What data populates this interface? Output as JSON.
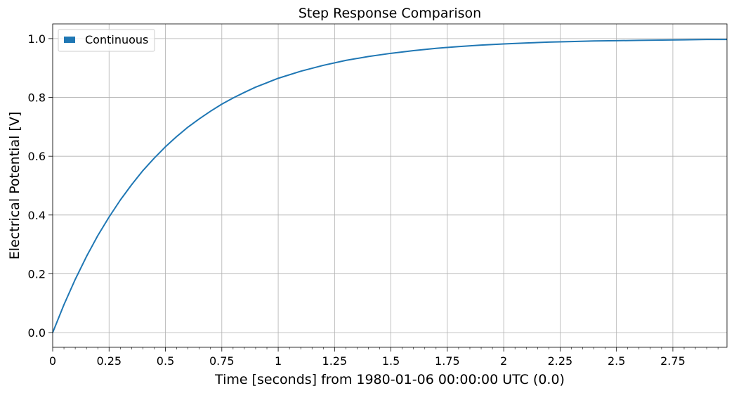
{
  "chart_data": {
    "type": "line",
    "title": "Step Response Comparison",
    "xlabel": "Time [seconds] from 1980-01-06 00:00:00 UTC (0.0)",
    "ylabel": "Electrical Potential [V]",
    "xlim": [
      0,
      2.99
    ],
    "ylim": [
      -0.05,
      1.05
    ],
    "x_ticks": [
      0,
      0.25,
      0.5,
      0.75,
      1,
      1.25,
      1.5,
      1.75,
      2,
      2.25,
      2.5,
      2.75
    ],
    "x_tick_labels": [
      "0",
      "0.25",
      "0.5",
      "0.75",
      "1",
      "1.25",
      "1.5",
      "1.75",
      "2",
      "2.25",
      "2.5",
      "2.75"
    ],
    "y_ticks": [
      0,
      0.2,
      0.4,
      0.6,
      0.8,
      1
    ],
    "y_tick_labels": [
      "0.0",
      "0.2",
      "0.4",
      "0.6",
      "0.8",
      "1.0"
    ],
    "grid": true,
    "legend_position": "top-left",
    "series": [
      {
        "name": "Continuous",
        "color": "#1f77b4",
        "x": [
          0,
          0.05,
          0.1,
          0.15,
          0.2,
          0.25,
          0.3,
          0.35,
          0.4,
          0.45,
          0.5,
          0.55,
          0.6,
          0.65,
          0.7,
          0.75,
          0.8,
          0.85,
          0.9,
          0.95,
          1.0,
          1.1,
          1.2,
          1.3,
          1.4,
          1.5,
          1.6,
          1.7,
          1.8,
          1.9,
          2.0,
          2.1,
          2.2,
          2.3,
          2.4,
          2.5,
          2.6,
          2.7,
          2.8,
          2.9,
          2.99
        ],
        "y": [
          0,
          0.095,
          0.181,
          0.259,
          0.33,
          0.393,
          0.451,
          0.503,
          0.551,
          0.593,
          0.632,
          0.667,
          0.699,
          0.727,
          0.753,
          0.777,
          0.798,
          0.817,
          0.835,
          0.85,
          0.865,
          0.889,
          0.909,
          0.926,
          0.939,
          0.95,
          0.959,
          0.967,
          0.973,
          0.978,
          0.982,
          0.985,
          0.988,
          0.99,
          0.992,
          0.993,
          0.994,
          0.995,
          0.996,
          0.997,
          0.997
        ]
      }
    ]
  }
}
